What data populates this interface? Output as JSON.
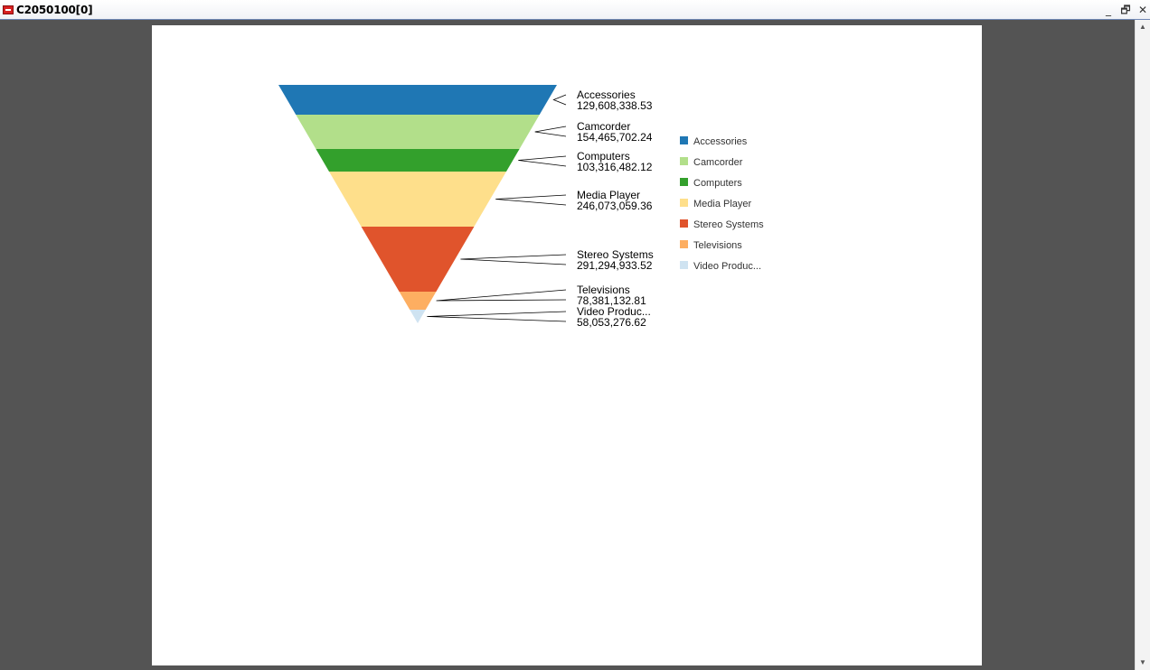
{
  "window": {
    "title": "C2050100[0]",
    "minimize_glyph": "_",
    "maximize_glyph": "🗗",
    "close_glyph": "✕"
  },
  "scrollbar": {
    "up_glyph": "▲",
    "down_glyph": "▼"
  },
  "chart_data": {
    "type": "funnel",
    "orientation": "inverted-triangle",
    "legend_position": "right",
    "categories": [
      "Accessories",
      "Camcorder",
      "Computers",
      "Media Player",
      "Stereo Systems",
      "Televisions",
      "Video Produc..."
    ],
    "values": [
      129608338.53,
      154465702.24,
      103316482.12,
      246073059.36,
      291294933.52,
      78381132.81,
      58053276.62
    ],
    "value_labels": [
      "129,608,338.53",
      "154,465,702.24",
      "103,316,482.12",
      "246,073,059.36",
      "291,294,933.52",
      "78,381,132.81",
      "58,053,276.62"
    ],
    "colors": [
      "#1f77b4",
      "#b2df8a",
      "#33a02c",
      "#fedf8b",
      "#e0542c",
      "#fdae61",
      "#cfe3f1"
    ]
  }
}
